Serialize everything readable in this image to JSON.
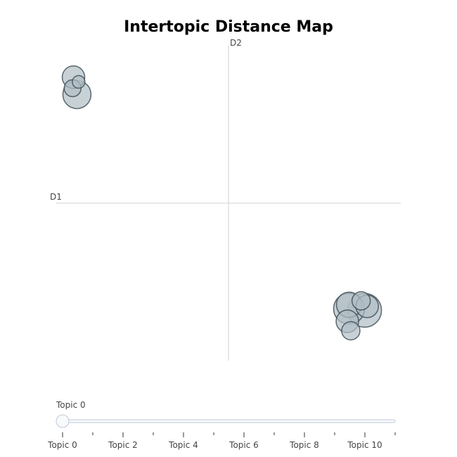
{
  "chart_data": {
    "type": "scatter",
    "title": "Intertopic Distance Map",
    "xlabel": "D1",
    "ylabel": "D2",
    "xlim": [
      -10,
      10
    ],
    "ylim": [
      -10,
      10
    ],
    "grid": false,
    "marker_fill": "#b0bec5",
    "marker_stroke": "#37474f",
    "points": [
      {
        "topic": 0,
        "x": -9.0,
        "y": 8.0,
        "size": 16
      },
      {
        "topic": 1,
        "x": -9.05,
        "y": 7.3,
        "size": 12
      },
      {
        "topic": 2,
        "x": -8.7,
        "y": 7.7,
        "size": 9
      },
      {
        "topic": 3,
        "x": -8.8,
        "y": 6.9,
        "size": 20
      },
      {
        "topic": 4,
        "x": 7.0,
        "y": -6.7,
        "size": 22
      },
      {
        "topic": 5,
        "x": 7.9,
        "y": -6.8,
        "size": 24
      },
      {
        "topic": 6,
        "x": 7.7,
        "y": -6.2,
        "size": 13
      },
      {
        "topic": 7,
        "x": 8.05,
        "y": -6.55,
        "size": 16
      },
      {
        "topic": 8,
        "x": 6.9,
        "y": -7.5,
        "size": 16
      },
      {
        "topic": 9,
        "x": 7.1,
        "y": -8.1,
        "size": 13
      },
      {
        "topic": 10,
        "x": 7.0,
        "y": -6.45,
        "size": 18
      }
    ]
  },
  "slider": {
    "current_label": "Topic 0",
    "value": 0,
    "min": 0,
    "max": 11,
    "tick_labels": [
      "Topic 0",
      "Topic 2",
      "Topic 4",
      "Topic 6",
      "Topic 8",
      "Topic 10"
    ],
    "tick_values": [
      0,
      2,
      4,
      6,
      8,
      10
    ]
  }
}
